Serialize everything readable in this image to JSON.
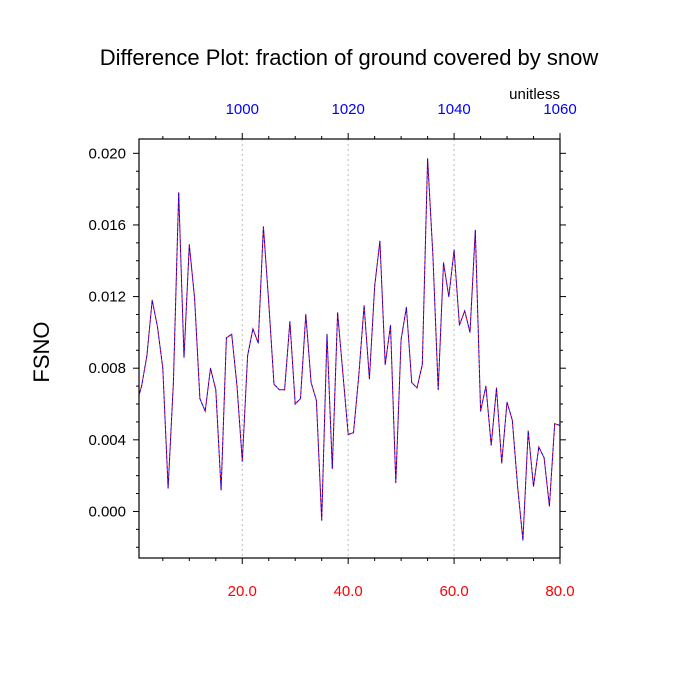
{
  "chart_data": {
    "type": "line",
    "title": "Difference Plot: fraction of ground covered by snow",
    "units": "unitless",
    "ylabel": "FSNO",
    "xlabel": "",
    "xlim": [
      0.5,
      80
    ],
    "ylim": [
      -0.0026,
      0.0208
    ],
    "grid": "vertical dashed at 20, 40, 60",
    "x_tick_labels": [
      "20.0",
      "40.0",
      "60.0",
      "80.0"
    ],
    "x_ticks": [
      20,
      40,
      60,
      80
    ],
    "top_tick_labels": [
      "1000",
      "1020",
      "1040",
      "1060"
    ],
    "top_ticks": [
      1000,
      1020,
      1040,
      1060
    ],
    "top_axis_offset": 980,
    "y_tick_labels": [
      "0.000",
      "0.004",
      "0.008",
      "0.012",
      "0.016",
      "0.020"
    ],
    "y_ticks": [
      0.0,
      0.004,
      0.008,
      0.012,
      0.016,
      0.02
    ],
    "colors": {
      "bottom_axis_labels": "#ff0000",
      "top_axis_labels": "#0000ff",
      "series_a": "#0000ff",
      "series_b": "#ff0000",
      "grid": "#bbbbbb"
    },
    "series": [
      {
        "name": "difference",
        "x": [
          0.5,
          1,
          2,
          3,
          4,
          5,
          6,
          7,
          8,
          9,
          10,
          11,
          12,
          13,
          14,
          15,
          16,
          17,
          18,
          19,
          20,
          21,
          22,
          23,
          24,
          25,
          26,
          27,
          28,
          29,
          30,
          31,
          32,
          33,
          34,
          35,
          36,
          37,
          38,
          39,
          40,
          41,
          42,
          43,
          44,
          45,
          46,
          47,
          48,
          49,
          50,
          51,
          52,
          53,
          54,
          55,
          56,
          57,
          58,
          59,
          60,
          61,
          62,
          63,
          64,
          65,
          66,
          67,
          68,
          69,
          70,
          71,
          72,
          73,
          74,
          75,
          76,
          77,
          78,
          79,
          80
        ],
        "values": [
          0.0065,
          0.007,
          0.0087,
          0.0118,
          0.0103,
          0.008,
          0.0013,
          0.0072,
          0.0178,
          0.0086,
          0.0149,
          0.0119,
          0.0063,
          0.0056,
          0.008,
          0.0068,
          0.0012,
          0.0097,
          0.0099,
          0.007,
          0.0028,
          0.0087,
          0.0102,
          0.0094,
          0.0159,
          0.0117,
          0.0071,
          0.0068,
          0.0068,
          0.0106,
          0.006,
          0.0063,
          0.011,
          0.0072,
          0.0062,
          -0.0005,
          0.0099,
          0.0024,
          0.0111,
          0.0077,
          0.0043,
          0.0044,
          0.0076,
          0.0115,
          0.0074,
          0.0126,
          0.0151,
          0.0082,
          0.0104,
          0.0016,
          0.0096,
          0.0114,
          0.0072,
          0.0069,
          0.0082,
          0.0197,
          0.0143,
          0.0068,
          0.0139,
          0.012,
          0.0146,
          0.0104,
          0.0112,
          0.01,
          0.0157,
          0.0056,
          0.007,
          0.0037,
          0.0069,
          0.0027,
          0.0061,
          0.0051,
          0.0014,
          -0.0016,
          0.0045,
          0.0014,
          0.0036,
          0.003,
          0.0003,
          0.0049,
          0.0048
        ]
      }
    ]
  }
}
